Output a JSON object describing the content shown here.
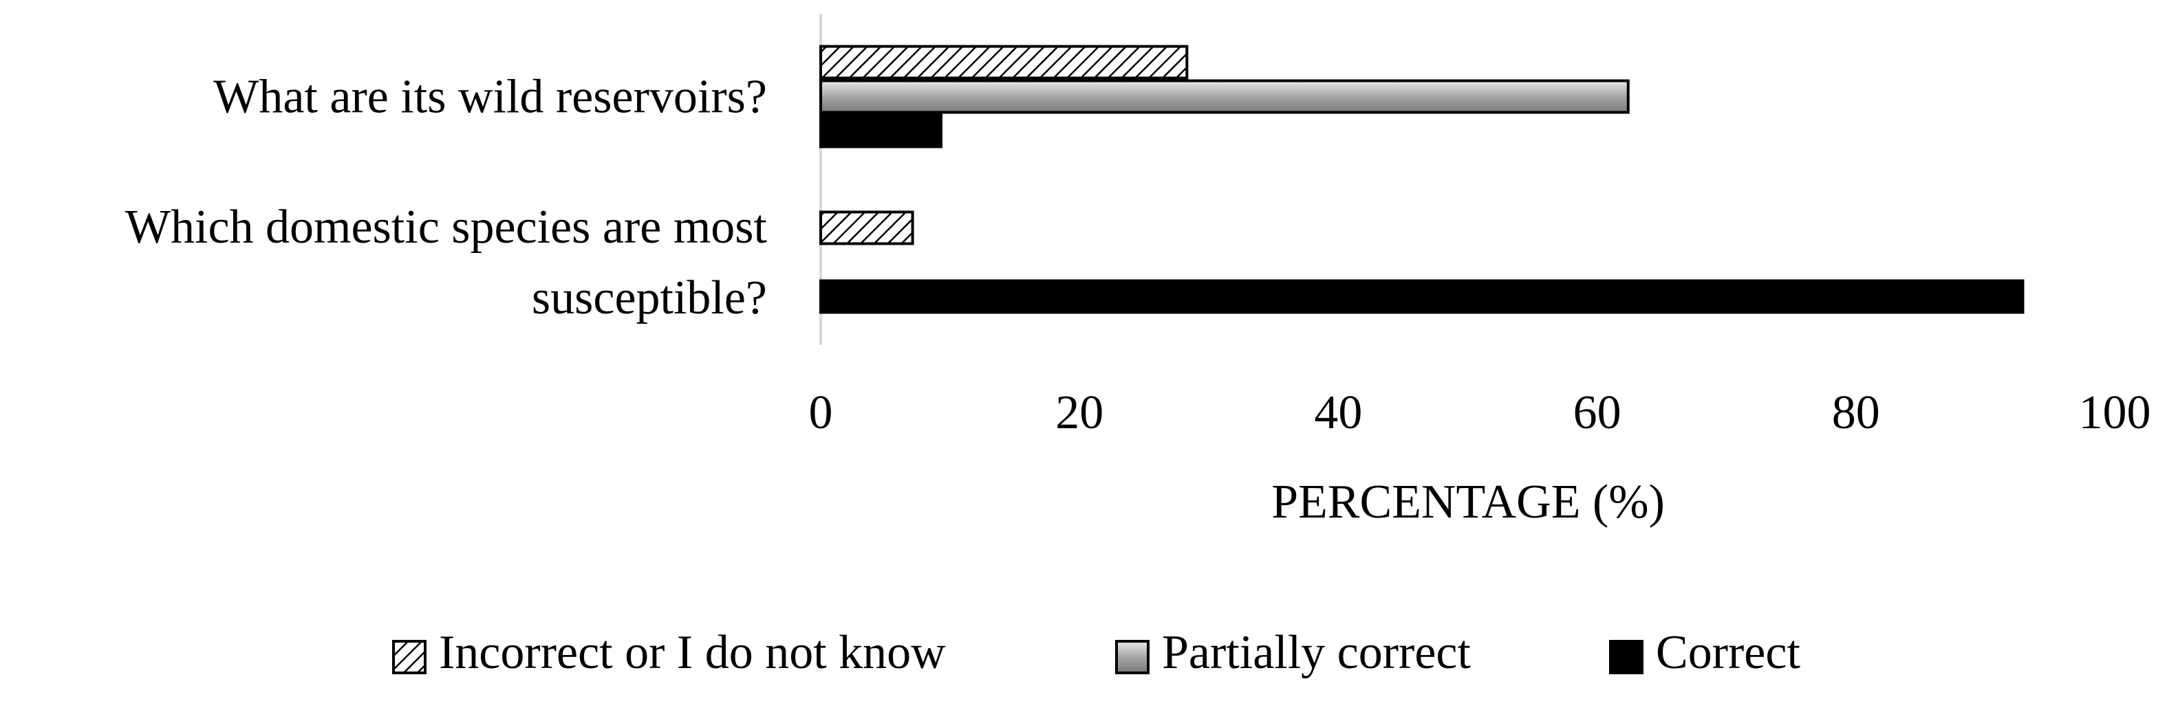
{
  "chart_data": {
    "type": "hbar",
    "xlabel": "PERCENTAGE (%)",
    "categories": [
      "What are its wild reservoirs?",
      "Which domestic species are most susceptible?"
    ],
    "series": [
      {
        "name": "Incorrect or I do not know",
        "color": "#000000",
        "pattern": "diagonal",
        "values": [
          28.3,
          7.1
        ]
      },
      {
        "name": "Partially correct",
        "color": "#a6a6a6",
        "gradient": true,
        "values": [
          62.4,
          null
        ]
      },
      {
        "name": "Correct",
        "color": "#000000",
        "values": [
          9.3,
          92.9
        ]
      }
    ],
    "xlim": [
      0,
      100
    ],
    "xticks": [
      0,
      20,
      40,
      60,
      80,
      100
    ],
    "legend": "bottom"
  }
}
